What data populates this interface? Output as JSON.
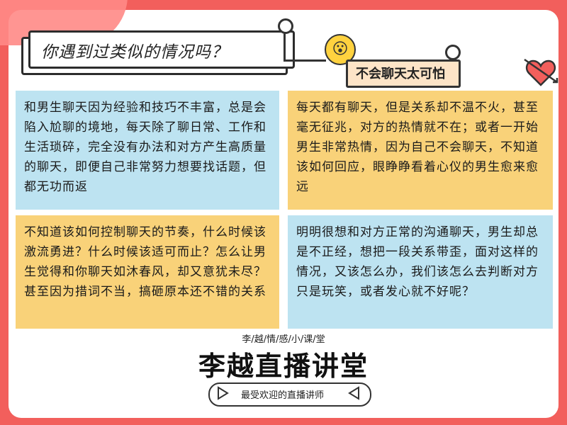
{
  "header": {
    "title": "你遇到过类似的情况吗？",
    "tag": "不会聊天太可怕"
  },
  "panels": [
    {
      "color": "blue",
      "text": "和男生聊天因为经验和技巧不丰富，总是会陷入尬聊的境地，每天除了聊日常、工作和生活琐碎，完全没有办法和对方产生高质量的聊天，即便自己非常努力想要找话题，但都无功而返"
    },
    {
      "color": "yellow",
      "text": "每天都有聊天，但是关系却不温不火，甚至毫无征兆，对方的热情就不在；或者一开始男生非常热情，因为自己不会聊天，不知道该如何回应，眼睁睁看着心仪的男生愈来愈远"
    },
    {
      "color": "yellow",
      "text": "不知道该如何控制聊天的节奏，什么时候该激流勇进？什么时候该适可而止？怎么让男生觉得和你聊天如沐春风，却又意犹未尽？甚至因为措词不当，搞砸原本还不错的关系"
    },
    {
      "color": "blue",
      "text": "明明很想和对方正常的沟通聊天，男生却总是不正经，想把一段关系带歪，面对这样的情况，又该怎么办，我们该怎么去判断对方只是玩笑，或者发心就不好呢？"
    }
  ],
  "footer": {
    "subtitle": "李/越/情/感/小/课/堂",
    "name": "李越直播讲堂",
    "slogan": "最受欢迎的直播讲师"
  },
  "icons": [
    "play-icon",
    "rewind-icon",
    "surprised-emoji-icon",
    "heart-arrow-icon",
    "sparkle-icon"
  ],
  "colors": {
    "background": "#f25f5c",
    "panel_blue": "#bde3f1",
    "panel_yellow": "#f9d279",
    "tag_fill": "#fde4c7"
  }
}
